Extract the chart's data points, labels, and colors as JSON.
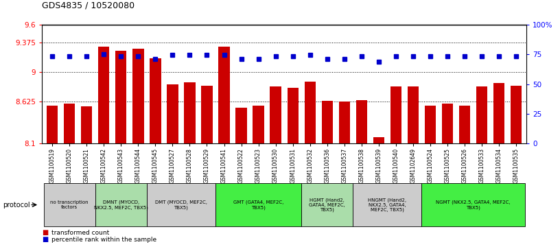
{
  "title": "GDS4835 / 10520080",
  "samples": [
    "GSM1100519",
    "GSM1100520",
    "GSM1100521",
    "GSM1100542",
    "GSM1100543",
    "GSM1100544",
    "GSM1100545",
    "GSM1100527",
    "GSM1100528",
    "GSM1100529",
    "GSM1100541",
    "GSM1100522",
    "GSM1100523",
    "GSM1100530",
    "GSM1100531",
    "GSM1100532",
    "GSM1100536",
    "GSM1100537",
    "GSM1100538",
    "GSM1100539",
    "GSM1100540",
    "GSM1102649",
    "GSM1100524",
    "GSM1100525",
    "GSM1100526",
    "GSM1100533",
    "GSM1100534",
    "GSM1100535"
  ],
  "bar_values": [
    8.58,
    8.6,
    8.57,
    9.32,
    9.27,
    9.3,
    9.18,
    8.85,
    8.87,
    8.83,
    9.32,
    8.55,
    8.58,
    8.82,
    8.8,
    8.88,
    8.64,
    8.63,
    8.65,
    8.18,
    8.82,
    8.82,
    8.58,
    8.6,
    8.58,
    8.82,
    8.86,
    8.83
  ],
  "dot_values": [
    9.2,
    9.2,
    9.2,
    9.23,
    9.2,
    9.2,
    9.17,
    9.22,
    9.22,
    9.22,
    9.22,
    9.17,
    9.17,
    9.2,
    9.2,
    9.22,
    9.17,
    9.17,
    9.2,
    9.13,
    9.2,
    9.2,
    9.2,
    9.2,
    9.2,
    9.2,
    9.2,
    9.2
  ],
  "bar_color": "#cc0000",
  "dot_color": "#0000cc",
  "ylim": [
    8.1,
    9.6
  ],
  "y_ticks_left": [
    8.1,
    8.625,
    9.0,
    9.375,
    9.6
  ],
  "y_tick_labels_left": [
    "8.1",
    "8.625",
    "9",
    "9.375",
    "9.6"
  ],
  "right_tick_vals": [
    0,
    25,
    50,
    75,
    100
  ],
  "right_tick_labels": [
    "0",
    "25",
    "50",
    "75",
    "100%"
  ],
  "dotted_lines": [
    8.625,
    9.0,
    9.375
  ],
  "protocols": [
    {
      "label": "no transcription\nfactors",
      "start": 0,
      "end": 2,
      "color": "#cccccc"
    },
    {
      "label": "DMNT (MYOCD,\nNKX2.5, MEF2C, TBX5)",
      "start": 3,
      "end": 5,
      "color": "#aaddaa"
    },
    {
      "label": "DMT (MYOCD, MEF2C,\nTBX5)",
      "start": 6,
      "end": 9,
      "color": "#cccccc"
    },
    {
      "label": "GMT (GATA4, MEF2C,\nTBX5)",
      "start": 10,
      "end": 14,
      "color": "#44ee44"
    },
    {
      "label": "HGMT (Hand2,\nGATA4, MEF2C,\nTBX5)",
      "start": 15,
      "end": 17,
      "color": "#aaddaa"
    },
    {
      "label": "HNGMT (Hand2,\nNKX2.5, GATA4,\nMEF2C, TBX5)",
      "start": 18,
      "end": 21,
      "color": "#cccccc"
    },
    {
      "label": "NGMT (NKX2.5, GATA4, MEF2C,\nTBX5)",
      "start": 22,
      "end": 27,
      "color": "#44ee44"
    }
  ],
  "legend_bar_label": "transformed count",
  "legend_dot_label": "percentile rank within the sample",
  "protocol_label": "protocol"
}
